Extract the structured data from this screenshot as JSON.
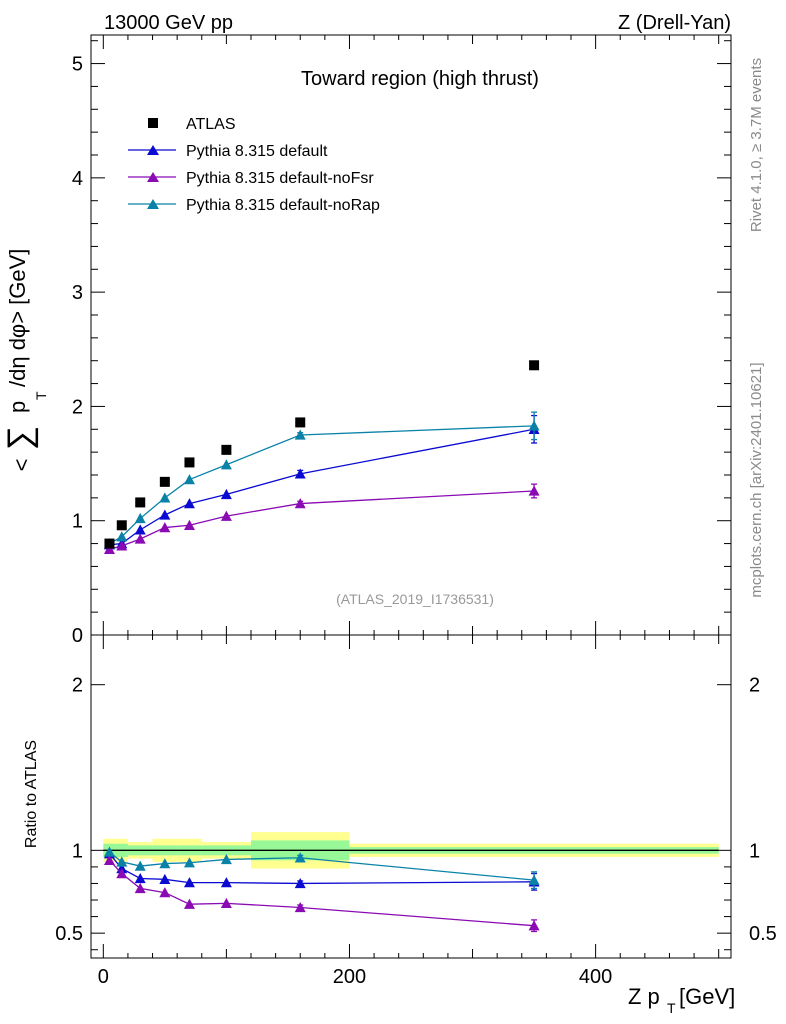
{
  "header": {
    "left": "13000 GeV pp",
    "right": "Z (Drell-Yan)"
  },
  "side_labels": {
    "rivet": "Rivet 4.1.0, ≥ 3.7M events",
    "mcplots": "mcplots.cern.ch [arXiv:2401.10621]"
  },
  "colors": {
    "data": "#000000",
    "default": "#0a0ad2",
    "noFsr": "#8a0ab4",
    "noRap": "#0a82a8",
    "band_inner": "#98f898",
    "band_outer": "#ffff90"
  },
  "chart_data": [
    {
      "panel": "main",
      "type": "scatter",
      "title": "Toward region (high thrust)",
      "ylabel": "< ∑ p_T / dη dφ > [GeV]",
      "xlim": [
        -10,
        510
      ],
      "ylim": [
        0,
        5.25
      ],
      "y_ticks": [
        0,
        1,
        2,
        3,
        4,
        5
      ],
      "analysis_tag": "(ATLAS_2019_I1736531)",
      "legend_position": "top-left",
      "series": [
        {
          "name": "ATLAS",
          "key": "data",
          "marker": "square",
          "points": [
            {
              "x": 5,
              "y": 0.8
            },
            {
              "x": 15,
              "y": 0.96
            },
            {
              "x": 30,
              "y": 1.16
            },
            {
              "x": 50,
              "y": 1.34
            },
            {
              "x": 70,
              "y": 1.51
            },
            {
              "x": 100,
              "y": 1.62
            },
            {
              "x": 160,
              "y": 1.86
            },
            {
              "x": 350,
              "y": 2.36
            }
          ]
        },
        {
          "name": "Pythia 8.315 default",
          "key": "default",
          "marker": "triangle",
          "points": [
            {
              "x": 5,
              "y": 0.79
            },
            {
              "x": 15,
              "y": 0.8
            },
            {
              "x": 30,
              "y": 0.92
            },
            {
              "x": 50,
              "y": 1.05
            },
            {
              "x": 70,
              "y": 1.15
            },
            {
              "x": 100,
              "y": 1.23
            },
            {
              "x": 160,
              "y": 1.41
            },
            {
              "x": 350,
              "y": 1.8
            }
          ],
          "errors": [
            0.01,
            0.01,
            0.01,
            0.01,
            0.01,
            0.01,
            0.03,
            0.12
          ]
        },
        {
          "name": "Pythia 8.315 default-noFsr",
          "key": "noFsr",
          "marker": "triangle",
          "points": [
            {
              "x": 5,
              "y": 0.75
            },
            {
              "x": 15,
              "y": 0.78
            },
            {
              "x": 30,
              "y": 0.84
            },
            {
              "x": 50,
              "y": 0.94
            },
            {
              "x": 70,
              "y": 0.96
            },
            {
              "x": 100,
              "y": 1.04
            },
            {
              "x": 160,
              "y": 1.15
            },
            {
              "x": 350,
              "y": 1.26
            }
          ],
          "errors": [
            0.01,
            0.01,
            0.01,
            0.01,
            0.01,
            0.01,
            0.02,
            0.06
          ]
        },
        {
          "name": "Pythia 8.315 default-noRap",
          "key": "noRap",
          "marker": "triangle",
          "points": [
            {
              "x": 5,
              "y": 0.8
            },
            {
              "x": 15,
              "y": 0.86
            },
            {
              "x": 30,
              "y": 1.02
            },
            {
              "x": 50,
              "y": 1.2
            },
            {
              "x": 70,
              "y": 1.36
            },
            {
              "x": 100,
              "y": 1.49
            },
            {
              "x": 160,
              "y": 1.75
            },
            {
              "x": 350,
              "y": 1.83
            }
          ],
          "errors": [
            0.01,
            0.01,
            0.01,
            0.01,
            0.01,
            0.01,
            0.02,
            0.12
          ]
        }
      ]
    },
    {
      "panel": "ratio",
      "type": "line",
      "ylabel": "Ratio to ATLAS",
      "xlabel": "Z p_T [GeV]",
      "xlim": [
        -10,
        510
      ],
      "ylim": [
        0.35,
        2.3
      ],
      "y_ticks": [
        0.5,
        1,
        2
      ],
      "y_tick_labels": [
        "0.5",
        "1",
        "2"
      ],
      "x_ticks": [
        0,
        200,
        400
      ],
      "x_tick_labels": [
        "0",
        "200",
        "400"
      ],
      "uncertainty_band": [
        {
          "xlo": 0,
          "xhi": 10,
          "inner": 0.04,
          "outer": 0.07
        },
        {
          "xlo": 10,
          "xhi": 20,
          "inner": 0.04,
          "outer": 0.07
        },
        {
          "xlo": 20,
          "xhi": 40,
          "inner": 0.03,
          "outer": 0.05
        },
        {
          "xlo": 40,
          "xhi": 60,
          "inner": 0.03,
          "outer": 0.07
        },
        {
          "xlo": 60,
          "xhi": 80,
          "inner": 0.03,
          "outer": 0.07
        },
        {
          "xlo": 80,
          "xhi": 120,
          "inner": 0.03,
          "outer": 0.05
        },
        {
          "xlo": 120,
          "xhi": 200,
          "inner": 0.06,
          "outer": 0.11
        },
        {
          "xlo": 200,
          "xhi": 500,
          "inner": 0.02,
          "outer": 0.04
        }
      ],
      "series": [
        {
          "name": "Pythia 8.315 default",
          "key": "default",
          "points": [
            {
              "x": 5,
              "y": 0.98
            },
            {
              "x": 15,
              "y": 0.89
            },
            {
              "x": 30,
              "y": 0.83
            },
            {
              "x": 50,
              "y": 0.825
            },
            {
              "x": 70,
              "y": 0.805
            },
            {
              "x": 100,
              "y": 0.805
            },
            {
              "x": 160,
              "y": 0.8
            },
            {
              "x": 350,
              "y": 0.81
            }
          ],
          "errors": [
            0.01,
            0.01,
            0.01,
            0.01,
            0.01,
            0.01,
            0.015,
            0.05
          ]
        },
        {
          "name": "Pythia 8.315 default-noFsr",
          "key": "noFsr",
          "points": [
            {
              "x": 5,
              "y": 0.94
            },
            {
              "x": 15,
              "y": 0.86
            },
            {
              "x": 30,
              "y": 0.77
            },
            {
              "x": 50,
              "y": 0.745
            },
            {
              "x": 70,
              "y": 0.675
            },
            {
              "x": 100,
              "y": 0.68
            },
            {
              "x": 160,
              "y": 0.655
            },
            {
              "x": 350,
              "y": 0.545
            }
          ],
          "errors": [
            0.01,
            0.01,
            0.01,
            0.01,
            0.01,
            0.01,
            0.015,
            0.035
          ]
        },
        {
          "name": "Pythia 8.315 default-noRap",
          "key": "noRap",
          "points": [
            {
              "x": 5,
              "y": 0.99
            },
            {
              "x": 15,
              "y": 0.93
            },
            {
              "x": 30,
              "y": 0.905
            },
            {
              "x": 50,
              "y": 0.92
            },
            {
              "x": 70,
              "y": 0.925
            },
            {
              "x": 100,
              "y": 0.945
            },
            {
              "x": 160,
              "y": 0.955
            },
            {
              "x": 350,
              "y": 0.82
            }
          ],
          "errors": [
            0.01,
            0.01,
            0.01,
            0.01,
            0.01,
            0.01,
            0.015,
            0.05
          ]
        }
      ]
    }
  ]
}
